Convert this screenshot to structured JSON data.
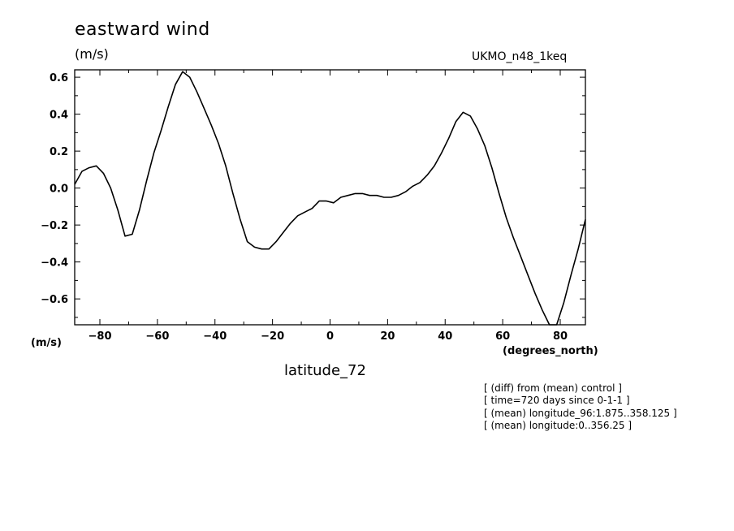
{
  "header": {
    "title": "eastward wind",
    "units": "(m/s)",
    "dataset": "UKMO_n48_1keq"
  },
  "axes": {
    "y_unit_label": "(m/s)",
    "x_units": "(degrees_north)",
    "x_label": "latitude_72"
  },
  "notes": [
    "[ (diff) from (mean) control ]",
    "[ time=720 days since 0-1-1 ]",
    "[ (mean) longitude_96:1.875..358.125 ]",
    "[ (mean) longitude:0..356.25 ]"
  ],
  "chart_data": {
    "type": "line",
    "title": "eastward wind",
    "xlabel": "latitude_72",
    "ylabel": "(m/s)",
    "xlim": [
      -88.75,
      88.75
    ],
    "ylim": [
      -0.74,
      0.64
    ],
    "x_ticks": [
      -80,
      -60,
      -40,
      -20,
      0,
      20,
      40,
      60,
      80
    ],
    "x_tick_labels": [
      "−80",
      "−60",
      "−40",
      "−20",
      "0",
      "20",
      "40",
      "60",
      "80"
    ],
    "y_ticks": [
      0.6,
      0.4,
      0.2,
      0.0,
      -0.2,
      -0.4,
      -0.6
    ],
    "y_tick_labels": [
      "0.6",
      "0.4",
      "0.2",
      "0.0",
      "−0.2",
      "−0.4",
      "−0.6"
    ],
    "grid": false,
    "series": [
      {
        "x": [
          -88.75,
          -86.25,
          -83.75,
          -81.25,
          -78.75,
          -76.25,
          -73.75,
          -71.25,
          -68.75,
          -66.25,
          -63.75,
          -61.25,
          -58.75,
          -56.25,
          -53.75,
          -51.25,
          -48.75,
          -46.25,
          -43.75,
          -41.25,
          -38.75,
          -36.25,
          -33.75,
          -31.25,
          -28.75,
          -26.25,
          -23.75,
          -21.25,
          -18.75,
          -16.25,
          -13.75,
          -11.25,
          -8.75,
          -6.25,
          -3.75,
          -1.25,
          1.25,
          3.75,
          6.25,
          8.75,
          11.25,
          13.75,
          16.25,
          18.75,
          21.25,
          23.75,
          26.25,
          28.75,
          31.25,
          33.75,
          36.25,
          38.75,
          41.25,
          43.75,
          46.25,
          48.75,
          51.25,
          53.75,
          56.25,
          58.75,
          61.25,
          63.75,
          66.25,
          68.75,
          71.25,
          73.75,
          76.25,
          78.75,
          81.25,
          83.75,
          86.25,
          88.75
        ],
        "values": [
          0.02,
          0.09,
          0.11,
          0.12,
          0.08,
          0.0,
          -0.12,
          -0.26,
          -0.25,
          -0.12,
          0.04,
          0.19,
          0.31,
          0.44,
          0.56,
          0.63,
          0.6,
          0.52,
          0.43,
          0.34,
          0.24,
          0.12,
          -0.03,
          -0.17,
          -0.29,
          -0.32,
          -0.33,
          -0.33,
          -0.29,
          -0.24,
          -0.19,
          -0.15,
          -0.13,
          -0.11,
          -0.07,
          -0.07,
          -0.08,
          -0.05,
          -0.04,
          -0.03,
          -0.03,
          -0.04,
          -0.04,
          -0.05,
          -0.05,
          -0.04,
          -0.02,
          0.01,
          0.03,
          0.07,
          0.12,
          0.19,
          0.27,
          0.36,
          0.41,
          0.39,
          0.32,
          0.23,
          0.11,
          -0.03,
          -0.16,
          -0.27,
          -0.37,
          -0.47,
          -0.57,
          -0.66,
          -0.74,
          -0.74,
          -0.62,
          -0.47,
          -0.33,
          -0.17
        ]
      }
    ]
  }
}
